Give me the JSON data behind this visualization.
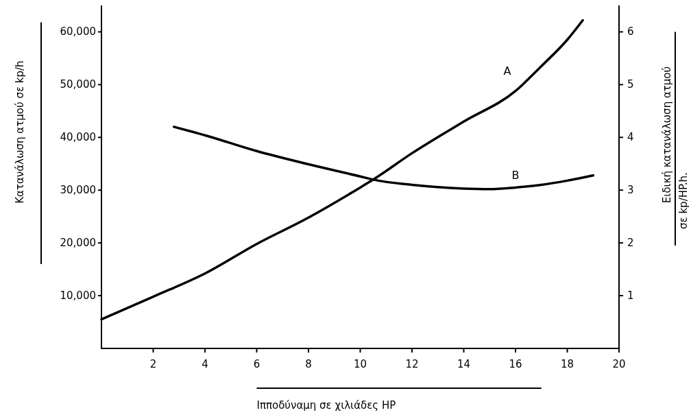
{
  "chart_data": {
    "type": "line",
    "xlabel": "Ιπποδύναμη σε χιλιάδες HP",
    "ylabel": "Κατανάλωση ατμού σε kp/h",
    "y2label": [
      "Ειδική κατανάλωση ατμού",
      "σε kp/HP.h."
    ],
    "xlim": [
      0,
      20
    ],
    "xticks": [
      2,
      4,
      6,
      8,
      10,
      12,
      14,
      16,
      18,
      20
    ],
    "ylim": [
      0,
      65000
    ],
    "yticks": [
      {
        "value": 10000,
        "label": "10,000"
      },
      {
        "value": 20000,
        "label": "20,000"
      },
      {
        "value": 30000,
        "label": "30,000"
      },
      {
        "value": 40000,
        "label": "40,000"
      },
      {
        "value": 50000,
        "label": "50,000"
      },
      {
        "value": 60000,
        "label": "60,000"
      }
    ],
    "y2lim": [
      0,
      6.5
    ],
    "y2ticks": [
      1,
      2,
      3,
      4,
      5,
      6
    ],
    "grid": false,
    "marker": "none",
    "line_style": "solid",
    "series": [
      {
        "name": "A",
        "color": "#000000",
        "x": [
          0,
          2,
          4,
          6,
          8,
          10,
          10.5,
          12,
          14,
          16,
          17,
          18,
          18.6
        ],
        "values": [
          5500,
          9800,
          14200,
          19800,
          24800,
          30500,
          32000,
          37000,
          43000,
          48800,
          53500,
          58500,
          62200
        ]
      },
      {
        "name": "B",
        "color": "#000000",
        "axis": "y2",
        "x": [
          2.8,
          4,
          6,
          8,
          10,
          10.5,
          12,
          14,
          15,
          16,
          17,
          18,
          19
        ],
        "values": [
          4.2,
          4.04,
          3.74,
          3.49,
          3.26,
          3.2,
          3.1,
          3.03,
          3.02,
          3.05,
          3.1,
          3.18,
          3.28
        ]
      }
    ]
  }
}
